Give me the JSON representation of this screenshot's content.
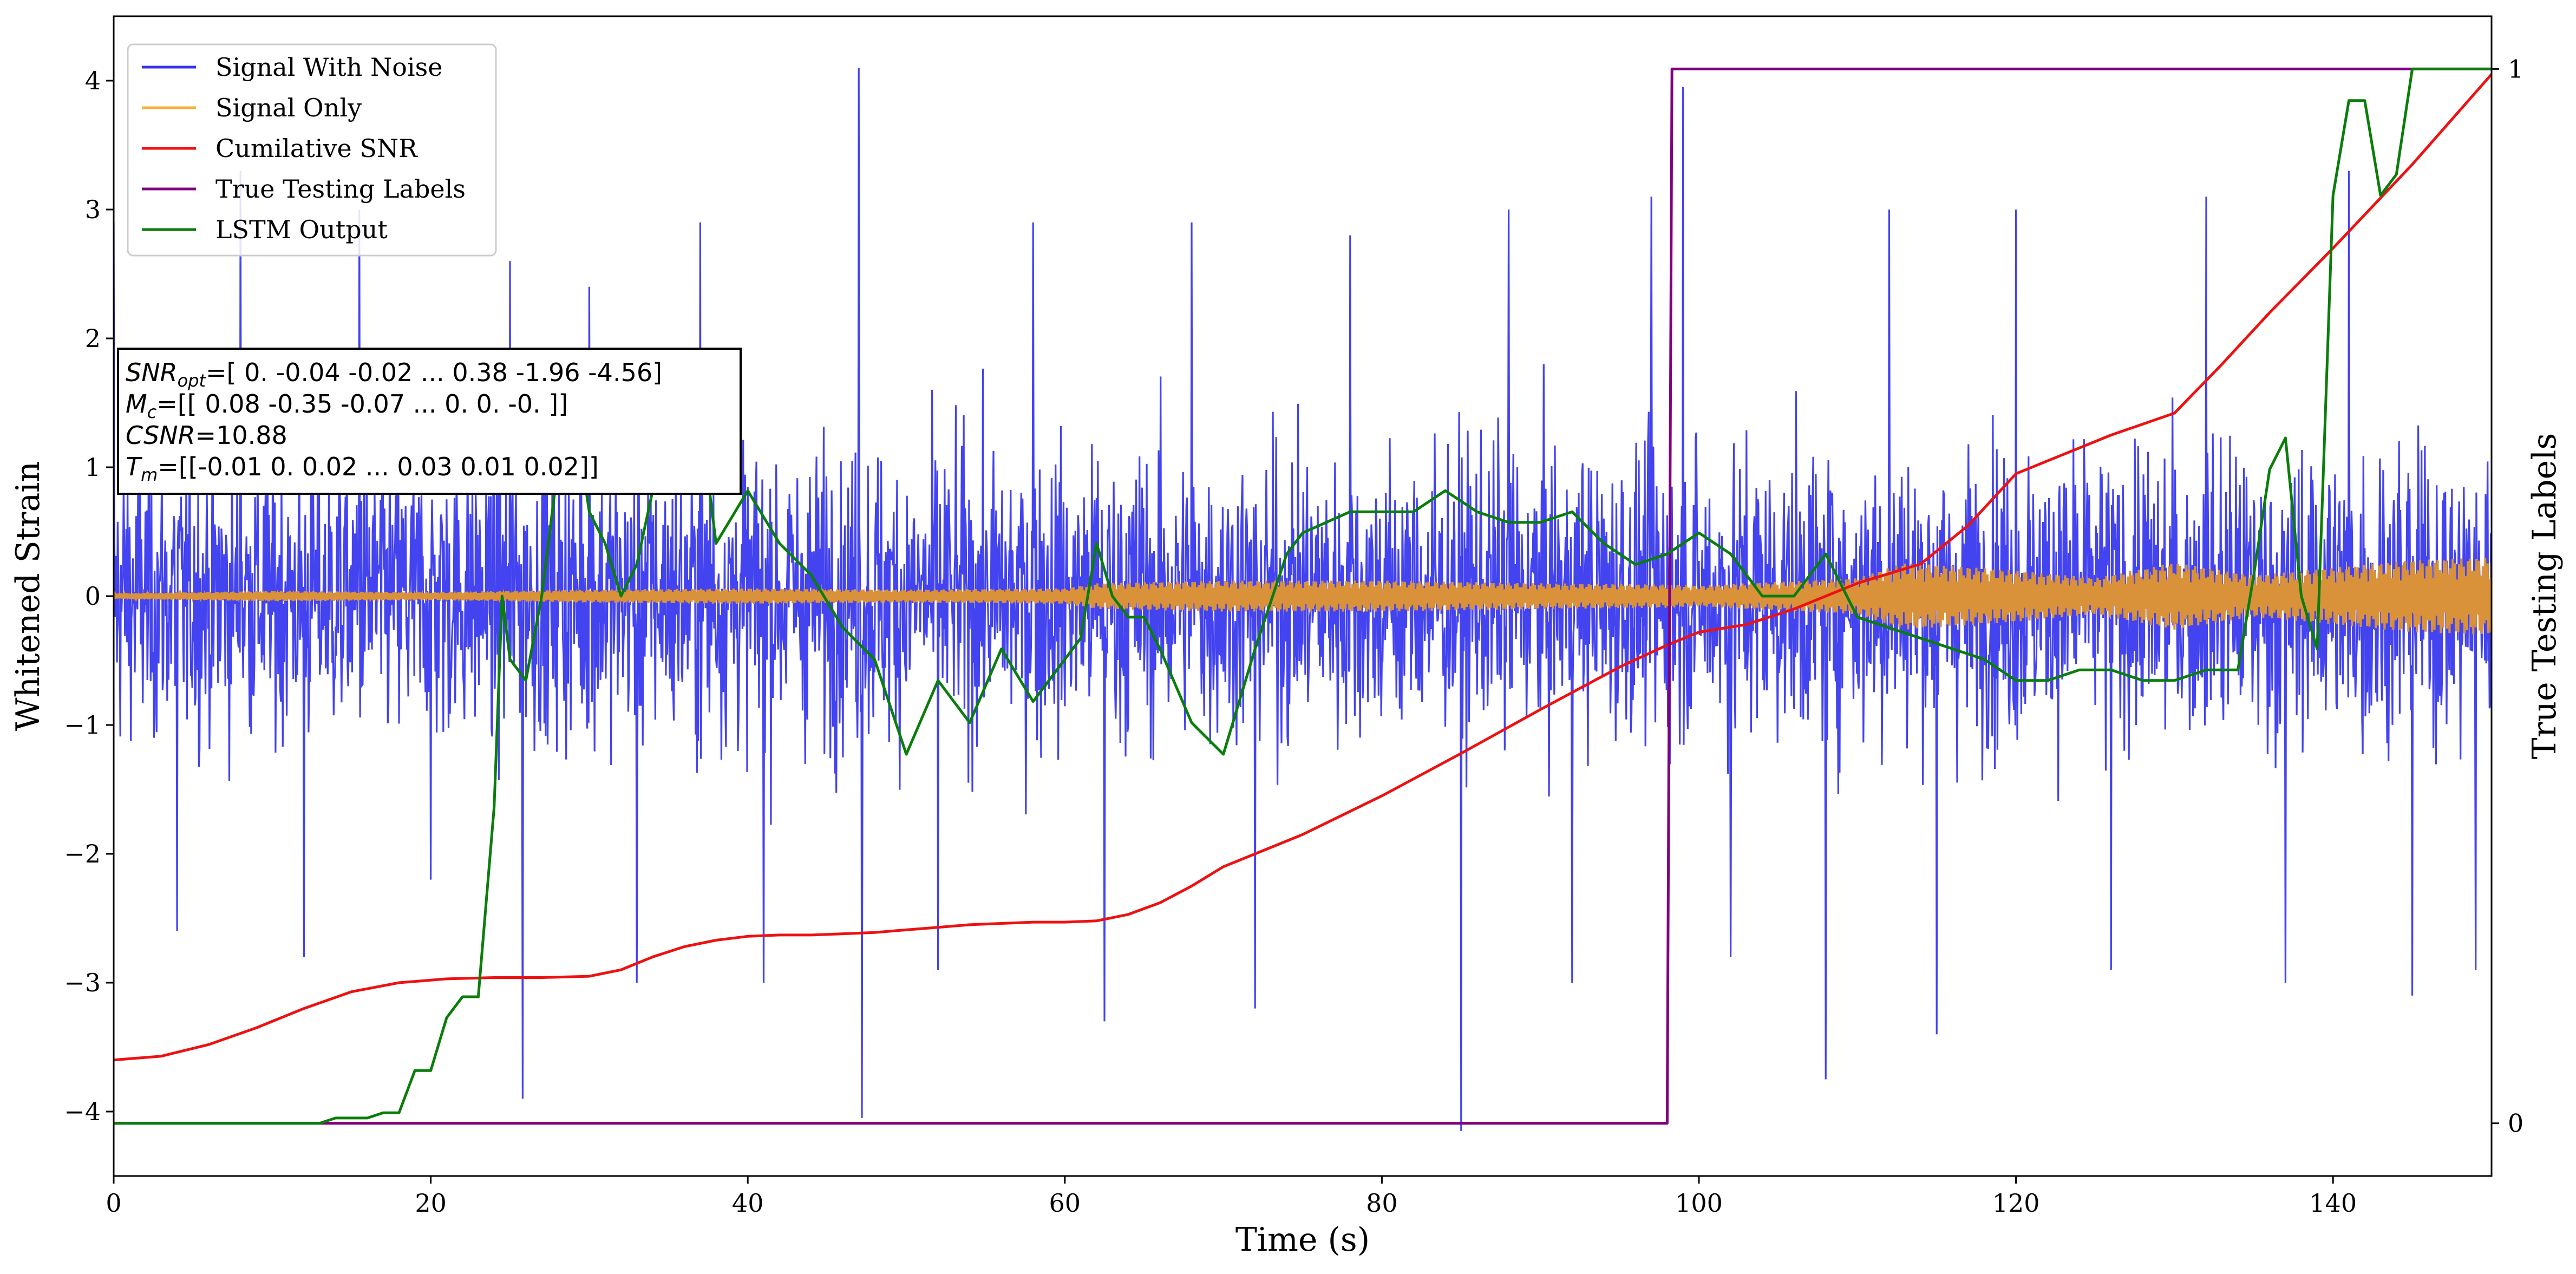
{
  "chart_data": {
    "type": "line",
    "xlabel": "Time (s)",
    "ylabel": "Whitened Strain",
    "y2label": "True Testing Labels",
    "xlim": [
      0,
      150
    ],
    "ylim": [
      -4.5,
      4.5
    ],
    "y2lim": [
      -0.05,
      1.05
    ],
    "xticks": [
      "0",
      "20",
      "40",
      "60",
      "80",
      "100",
      "120",
      "140"
    ],
    "yticks": [
      "−4",
      "−3",
      "−2",
      "−1",
      "0",
      "1",
      "2",
      "3",
      "4"
    ],
    "y2ticks": [
      "0",
      "1"
    ],
    "legend_position": "upper-left",
    "series": [
      {
        "name": "Signal With Noise",
        "color": "#3333ee",
        "description_points": [
          [
            0,
            2.9
          ],
          [
            4,
            -2.6
          ],
          [
            8,
            3.3
          ],
          [
            12,
            -2.8
          ],
          [
            15.5,
            3.0
          ],
          [
            20,
            -2.2
          ],
          [
            25,
            2.6
          ],
          [
            25.8,
            -3.9
          ],
          [
            30,
            2.4
          ],
          [
            33,
            -3.0
          ],
          [
            37,
            2.9
          ],
          [
            41,
            -3.0
          ],
          [
            47,
            4.1
          ],
          [
            47.2,
            -4.05
          ],
          [
            52,
            -2.9
          ],
          [
            58,
            2.9
          ],
          [
            62.5,
            -3.3
          ],
          [
            68,
            2.9
          ],
          [
            72,
            -3.2
          ],
          [
            78,
            2.8
          ],
          [
            85,
            -4.15
          ],
          [
            88,
            3.0
          ],
          [
            92,
            -3.0
          ],
          [
            97,
            3.1
          ],
          [
            99,
            3.95
          ],
          [
            102,
            -2.8
          ],
          [
            108,
            -3.75
          ],
          [
            112,
            3.0
          ],
          [
            115,
            -3.4
          ],
          [
            120,
            3.0
          ],
          [
            126,
            -2.9
          ],
          [
            132,
            3.1
          ],
          [
            137,
            -3.0
          ],
          [
            141,
            3.3
          ],
          [
            145,
            -3.1
          ],
          [
            149,
            -2.9
          ],
          [
            150,
            0.3
          ]
        ]
      },
      {
        "name": "Signal Only",
        "color": "#f5b035",
        "envelope": [
          [
            0,
            0.02
          ],
          [
            10,
            0.04
          ],
          [
            20,
            0.03
          ],
          [
            30,
            0.05
          ],
          [
            40,
            0.06
          ],
          [
            50,
            0.05
          ],
          [
            60,
            0.06
          ],
          [
            62,
            0.1
          ],
          [
            70,
            0.12
          ],
          [
            80,
            0.12
          ],
          [
            90,
            0.1
          ],
          [
            98,
            0.09
          ],
          [
            100,
            0.08
          ],
          [
            103,
            0.1
          ],
          [
            110,
            0.14
          ],
          [
            113,
            0.26
          ],
          [
            120,
            0.2
          ],
          [
            125,
            0.14
          ],
          [
            130,
            0.26
          ],
          [
            135,
            0.16
          ],
          [
            140,
            0.22
          ],
          [
            145,
            0.28
          ],
          [
            150,
            0.3
          ]
        ]
      },
      {
        "name": "Cumilative SNR",
        "color": "#ee1111",
        "x": [
          0,
          3,
          6,
          9,
          12,
          15,
          18,
          21,
          24,
          27,
          30,
          32,
          34,
          36,
          38,
          40,
          42,
          44,
          46,
          48,
          50,
          52,
          54,
          56,
          58,
          60,
          62,
          64,
          66,
          68,
          70,
          72,
          75,
          80,
          85,
          90,
          95,
          98,
          100,
          103,
          106,
          110,
          114,
          117,
          120,
          123,
          126,
          130,
          133,
          136,
          140,
          145,
          150
        ],
        "values": [
          -3.6,
          -3.57,
          -3.48,
          -3.35,
          -3.2,
          -3.07,
          -3.0,
          -2.97,
          -2.96,
          -2.96,
          -2.95,
          -2.9,
          -2.8,
          -2.72,
          -2.67,
          -2.64,
          -2.63,
          -2.63,
          -2.62,
          -2.61,
          -2.59,
          -2.57,
          -2.55,
          -2.54,
          -2.53,
          -2.53,
          -2.52,
          -2.47,
          -2.38,
          -2.25,
          -2.1,
          -2.0,
          -1.85,
          -1.55,
          -1.22,
          -0.88,
          -0.55,
          -0.38,
          -0.28,
          -0.22,
          -0.1,
          0.1,
          0.25,
          0.55,
          0.95,
          1.1,
          1.25,
          1.42,
          1.8,
          2.2,
          2.7,
          3.35,
          4.05
        ]
      },
      {
        "name": "True Testing Labels",
        "color": "#800080",
        "axis": "right",
        "x": [
          0,
          98,
          98.3,
          150
        ],
        "values": [
          0,
          0,
          1,
          1
        ]
      },
      {
        "name": "LSTM Output",
        "color": "#0a7d0a",
        "axis": "right",
        "x": [
          0,
          13,
          14,
          16,
          17,
          18,
          19,
          20,
          21,
          22,
          23,
          24,
          24.5,
          25,
          26,
          27,
          28,
          29,
          30,
          31,
          32,
          33,
          34,
          35,
          36,
          37,
          38,
          40,
          42,
          44,
          46,
          48,
          50,
          52,
          54,
          56,
          58,
          60,
          61,
          62,
          63,
          64,
          65,
          66,
          68,
          70,
          72,
          74,
          75,
          78,
          80,
          82,
          84,
          86,
          88,
          90,
          92,
          94,
          96,
          98,
          100,
          102,
          104,
          106,
          108,
          110,
          112,
          114,
          116,
          118,
          120,
          122,
          124,
          126,
          128,
          130,
          132,
          134,
          135,
          136,
          137,
          138,
          139,
          140,
          141,
          142,
          143,
          144,
          145,
          150
        ],
        "values": [
          0,
          0,
          0.005,
          0.005,
          0.01,
          0.01,
          0.05,
          0.05,
          0.1,
          0.12,
          0.12,
          0.3,
          0.5,
          0.44,
          0.42,
          0.5,
          0.62,
          0.68,
          0.58,
          0.55,
          0.5,
          0.53,
          0.6,
          0.65,
          0.72,
          0.67,
          0.55,
          0.6,
          0.55,
          0.52,
          0.47,
          0.44,
          0.35,
          0.42,
          0.38,
          0.45,
          0.4,
          0.44,
          0.46,
          0.55,
          0.5,
          0.48,
          0.48,
          0.45,
          0.38,
          0.35,
          0.45,
          0.54,
          0.56,
          0.58,
          0.58,
          0.58,
          0.6,
          0.58,
          0.57,
          0.57,
          0.58,
          0.55,
          0.53,
          0.54,
          0.56,
          0.54,
          0.5,
          0.5,
          0.54,
          0.48,
          0.47,
          0.46,
          0.45,
          0.44,
          0.42,
          0.42,
          0.43,
          0.43,
          0.42,
          0.42,
          0.43,
          0.43,
          0.52,
          0.62,
          0.65,
          0.5,
          0.45,
          0.88,
          0.97,
          0.97,
          0.88,
          0.9,
          1.0,
          1.0
        ]
      }
    ],
    "annotation": [
      {
        "label": "SNR",
        "sub": "opt",
        "text": "=[ 0.   -0.04 -0.02 ...  0.38 -1.96 -4.56]"
      },
      {
        "label": "M",
        "sub": "c",
        "text": "=[[ 0.08 -0.35 -0.07 ...  0.    0.   -0.  ]]"
      },
      {
        "label": "CSNR",
        "sub": "",
        "text": "=10.88"
      },
      {
        "label": "T",
        "sub": "m",
        "text": "=[[-0.01  0.    0.02 ...  0.03  0.01  0.02]]"
      }
    ]
  }
}
